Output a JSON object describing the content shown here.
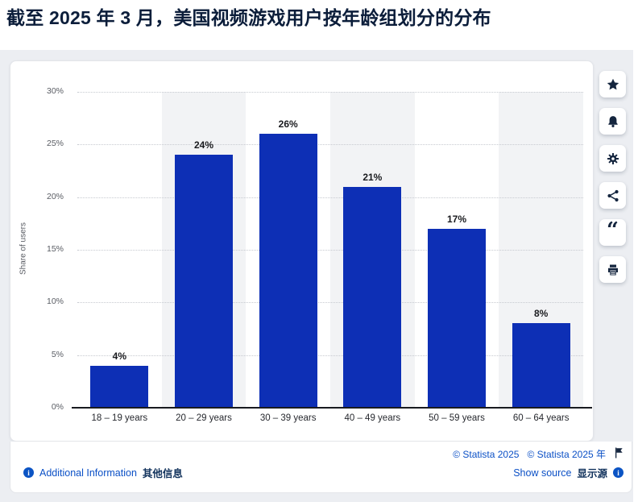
{
  "page": {
    "title": "截至 2025 年 3 月，美国视频游戏用户按年龄组划分的分布"
  },
  "chart_data": {
    "type": "bar",
    "title": "截至 2025 年 3 月，美国视频游戏用户按年龄组划分的分布",
    "categories": [
      "18 – 19 years",
      "20 – 29 years",
      "30 – 39 years",
      "40 – 49 years",
      "50 – 59 years",
      "60 – 64 years"
    ],
    "values": [
      4,
      24,
      26,
      21,
      17,
      8
    ],
    "value_labels": [
      "4%",
      "24%",
      "26%",
      "21%",
      "17%",
      "8%"
    ],
    "xlabel": "",
    "ylabel": "Share of users",
    "ylim": [
      0,
      30
    ],
    "ytick_step": 5,
    "ytick_labels": [
      "0%",
      "5%",
      "10%",
      "15%",
      "20%",
      "25%",
      "30%"
    ],
    "grid": "horizontal-dotted",
    "legend": "none",
    "bar_color": "#0d2fb5",
    "band_color": "#f2f3f5"
  },
  "icon_rail": {
    "buttons": [
      {
        "id": "favorite",
        "icon": "star-icon"
      },
      {
        "id": "alerts",
        "icon": "bell-icon"
      },
      {
        "id": "settings",
        "icon": "gear-icon"
      },
      {
        "id": "share",
        "icon": "share-icon"
      },
      {
        "id": "cite",
        "icon": "quote-icon"
      },
      {
        "id": "print",
        "icon": "printer-icon"
      }
    ]
  },
  "footer": {
    "additional_info_label": "Additional Information",
    "additional_info_zh": "其他信息",
    "copyright_en": "© Statista 2025",
    "copyright_zh": "© Statista 2025 年",
    "show_source_label": "Show source",
    "show_source_zh": "显示源",
    "info_glyph": "i"
  },
  "colors": {
    "bar": "#0d2fb5",
    "band": "#f2f3f5",
    "link_blue": "#0b50c6",
    "navy_text": "#11325c",
    "title_navy": "#0b1d3a",
    "backdrop_gray": "#eceef2"
  }
}
